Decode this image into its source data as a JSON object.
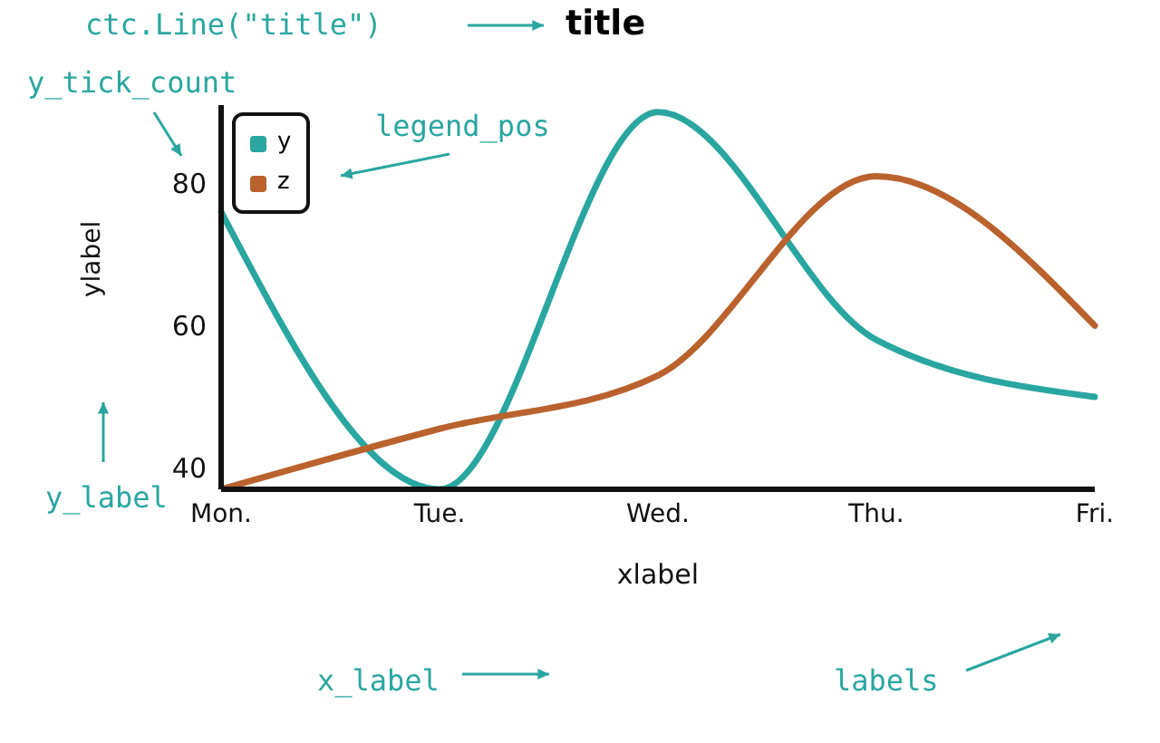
{
  "chart_data": {
    "type": "line",
    "title": "title",
    "xlabel": "xlabel",
    "ylabel": "ylabel",
    "categories": [
      "Mon.",
      "Tue.",
      "Wed.",
      "Thu.",
      "Fri."
    ],
    "series": [
      {
        "name": "y",
        "color": "#2aa6a0",
        "values": [
          76,
          37,
          90,
          58,
          50
        ]
      },
      {
        "name": "z",
        "color": "#b9622d",
        "values": [
          37,
          45.5,
          53,
          81,
          60
        ]
      }
    ],
    "ylim": [
      37,
      91
    ],
    "yticks": [
      40,
      60,
      80
    ],
    "grid": false,
    "legend": "top left",
    "marker": "none",
    "line_style": "solid",
    "annotations": [
      "ctc.Line(\"title\")",
      "y_tick_count",
      "legend_pos",
      "y_label",
      "x_label",
      "labels"
    ]
  }
}
